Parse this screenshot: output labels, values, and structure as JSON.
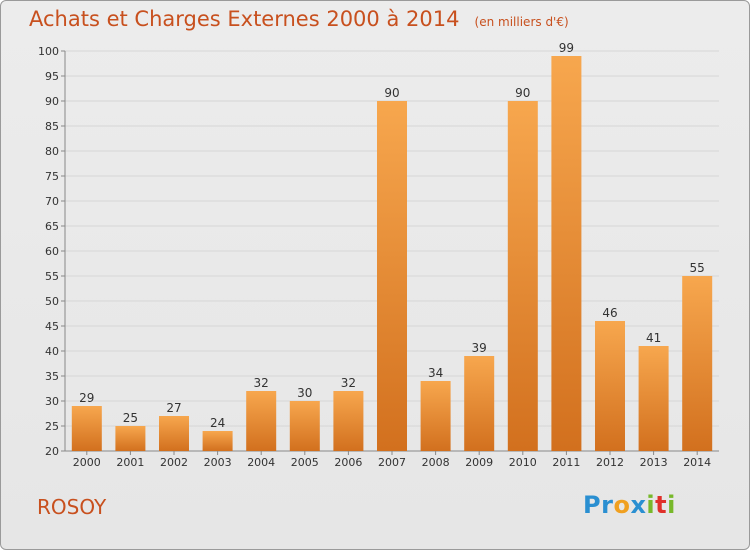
{
  "header": {
    "title": "Achats et Charges Externes 2000 à 2014",
    "unit": "(en milliers d'€)"
  },
  "commune": "ROSOY",
  "logo": {
    "text": "Proxiti",
    "letters": [
      {
        "ch": "P",
        "color": "#2a8fd1"
      },
      {
        "ch": "r",
        "color": "#2a8fd1"
      },
      {
        "ch": "o",
        "color": "#f0a020"
      },
      {
        "ch": "x",
        "color": "#2a8fd1"
      },
      {
        "ch": "i",
        "color": "#78b82a"
      },
      {
        "ch": "t",
        "color": "#e0302a"
      },
      {
        "ch": "i",
        "color": "#78b82a"
      }
    ]
  },
  "colors": {
    "bar_light": "#f7a74e",
    "bar_dark": "#d2701e",
    "grid": "#d6d6d6",
    "text": "#333333",
    "title": "#c8501e"
  },
  "chart_data": {
    "type": "bar",
    "categories": [
      "2000",
      "2001",
      "2002",
      "2003",
      "2004",
      "2005",
      "2006",
      "2007",
      "2008",
      "2009",
      "2010",
      "2011",
      "2012",
      "2013",
      "2014"
    ],
    "values": [
      29,
      25,
      27,
      24,
      32,
      30,
      32,
      90,
      34,
      39,
      90,
      99,
      46,
      41,
      55
    ],
    "title": "Achats et Charges Externes 2000 à 2014",
    "ylim": [
      20,
      100
    ],
    "yticks": [
      20,
      25,
      30,
      35,
      40,
      45,
      50,
      55,
      60,
      65,
      70,
      75,
      80,
      85,
      90,
      95,
      100
    ],
    "grid": true
  }
}
